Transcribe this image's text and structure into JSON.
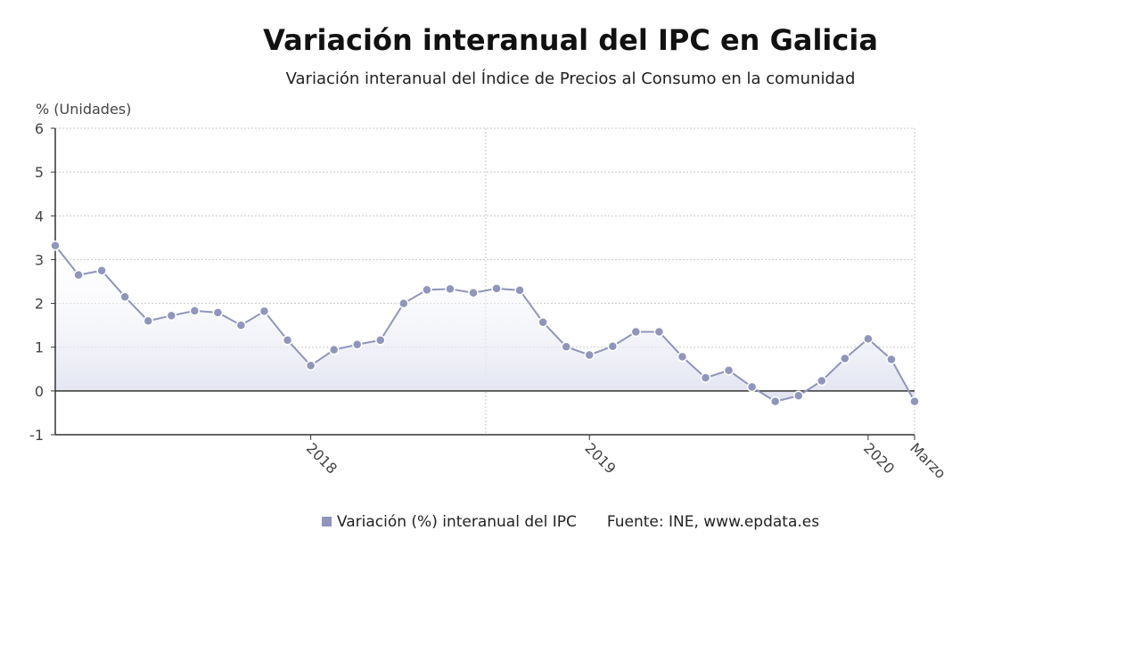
{
  "chart_data": {
    "type": "line",
    "title": "Variación interanual del IPC en Galicia",
    "subtitle": "Variación interanual del Índice de Precios al Consumo en la comunidad",
    "ylabel": "% (Unidades)",
    "ylim": [
      -1,
      6
    ],
    "yticks": [
      "6",
      "5",
      "4",
      "3",
      "2",
      "1",
      "0",
      "-1"
    ],
    "xticks": [
      {
        "label": "2018",
        "index": 11
      },
      {
        "label": "2019",
        "index": 23
      },
      {
        "label": "2020",
        "index": 35
      },
      {
        "label": "Marzo",
        "index": 37
      }
    ],
    "grid": true,
    "legend_position": "bottom",
    "source": "Fuente: INE, www.epdata.es",
    "series": [
      {
        "name": "Variación (%) interanual del IPC",
        "color": "#8f95bc",
        "values": [
          3.32,
          2.65,
          2.75,
          2.15,
          1.6,
          1.72,
          1.83,
          1.79,
          1.5,
          1.82,
          1.16,
          0.58,
          0.94,
          1.06,
          1.16,
          2.0,
          2.31,
          2.33,
          2.24,
          2.34,
          2.3,
          1.57,
          1.01,
          0.82,
          1.02,
          1.35,
          1.35,
          0.78,
          0.3,
          0.47,
          0.09,
          -0.24,
          -0.11,
          0.23,
          0.74,
          1.19,
          0.72,
          -0.24
        ]
      }
    ]
  }
}
